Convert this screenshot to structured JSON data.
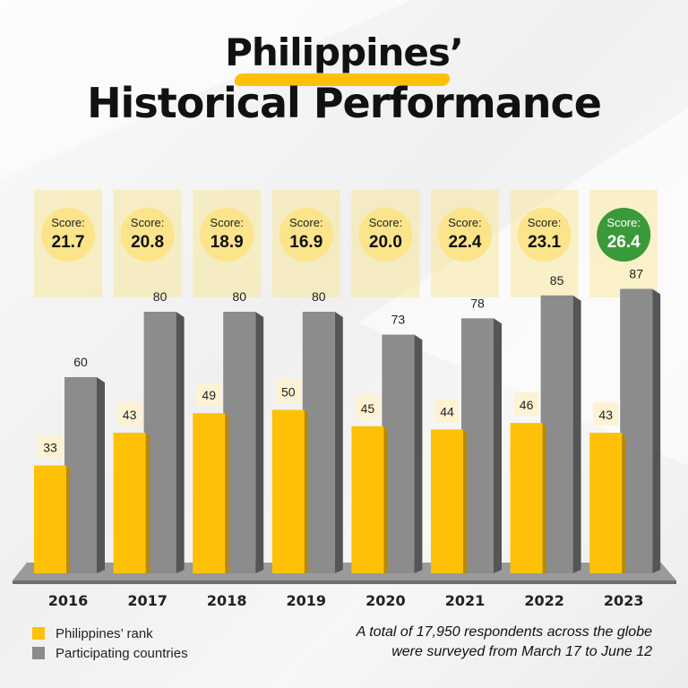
{
  "title_line1": "Philippines’",
  "title_line2": "Historical Performance",
  "score_label": "Score:",
  "footnote_line1": "A total of 17,950 respondents across the globe",
  "footnote_line2": "were surveyed  from March 17 to June 12",
  "colors": {
    "rank": "#ffc107",
    "participating": "#8c8c8c",
    "score_highlight": "#3a9a3a",
    "score_default": "#fbe48a"
  },
  "chart_data": {
    "type": "bar",
    "categories": [
      "2016",
      "2017",
      "2018",
      "2019",
      "2020",
      "2021",
      "2022",
      "2023"
    ],
    "series": [
      {
        "name": "Philippines’ rank",
        "values": [
          33,
          43,
          49,
          50,
          45,
          44,
          46,
          43
        ]
      },
      {
        "name": "Participating countries",
        "values": [
          60,
          80,
          80,
          80,
          73,
          78,
          85,
          87
        ]
      }
    ],
    "scores": [
      "21.7",
      "20.8",
      "18.9",
      "16.9",
      "20.0",
      "22.4",
      "23.1",
      "26.4"
    ],
    "highlight_year": "2023",
    "ylim": [
      0,
      90
    ],
    "legend_position": "bottom-left"
  }
}
